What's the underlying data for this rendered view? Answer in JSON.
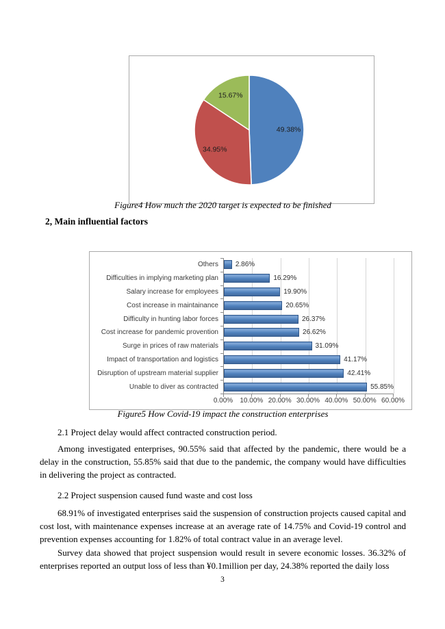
{
  "page": {
    "number": "3"
  },
  "figure4": {
    "caption": "Figure4 How much the 2020 target is expected to be finished"
  },
  "section": {
    "heading": "2, Main influential factors"
  },
  "figure5": {
    "caption": "Figure5 How Covid-19 impact the construction enterprises"
  },
  "body": {
    "sub21": "2.1 Project delay would affect contracted construction period.",
    "para_delay": "Among investigated enterprises, 90.55% said that affected by the pandemic, there would be a delay in the construction, 55.85% said that due to the pandemic, the company would have difficulties in delivering the project as contracted.",
    "sub22": "2.2 Project suspension caused fund waste and cost loss",
    "para_suspension": "68.91% of investigated enterprises said the suspension of construction projects caused capital and cost lost, with maintenance expenses increase at an average rate of 14.75% and Covid-19 control and prevention expenses accounting for 1.82% of total contract value in an average level.",
    "para_survey": "Survey data showed that project suspension would result in severe economic losses. 36.32% of enterprises reported an output loss of less than ¥0.1million per day, 24.38% reported the daily loss"
  },
  "chart_data": [
    {
      "type": "pie",
      "title": "",
      "labels": [
        "49.38%",
        "34.95%",
        "15.67%"
      ],
      "values": [
        49.38,
        34.95,
        15.67
      ],
      "colors": [
        "#4f81bd",
        "#c0504d",
        "#9bbb59"
      ],
      "start_angle_deg": 0,
      "direction": "clockwise",
      "label_radius": 0.72,
      "legend": "none"
    },
    {
      "type": "bar",
      "orientation": "horizontal",
      "title": "",
      "xlabel": "",
      "ylabel": "",
      "categories": [
        "Others",
        "Difficulties in implying marketing plan",
        "Salary increase for employees",
        "Cost increase in maintainance",
        "Difficulty in hunting labor forces",
        "Cost increase for pandemic provention",
        "Surge in prices of raw materials",
        "Impact of transportation and logistics",
        "Disruption of upstream material supplier",
        "Unable to diver as contracted"
      ],
      "values": [
        2.86,
        16.29,
        19.9,
        20.65,
        26.37,
        26.62,
        31.09,
        41.17,
        42.41,
        55.85
      ],
      "value_labels": [
        "2.86%",
        "16.29%",
        "19.90%",
        "20.65%",
        "26.37%",
        "26.62%",
        "31.09%",
        "41.17%",
        "42.41%",
        "55.85%"
      ],
      "x_ticks": [
        "0.00%",
        "10.00%",
        "20.00%",
        "30.00%",
        "40.00%",
        "50.00%",
        "60.00%"
      ],
      "xlim": [
        0,
        60
      ],
      "grid": "vertical",
      "legend": "none",
      "bar_color": "#4f81bd"
    }
  ]
}
